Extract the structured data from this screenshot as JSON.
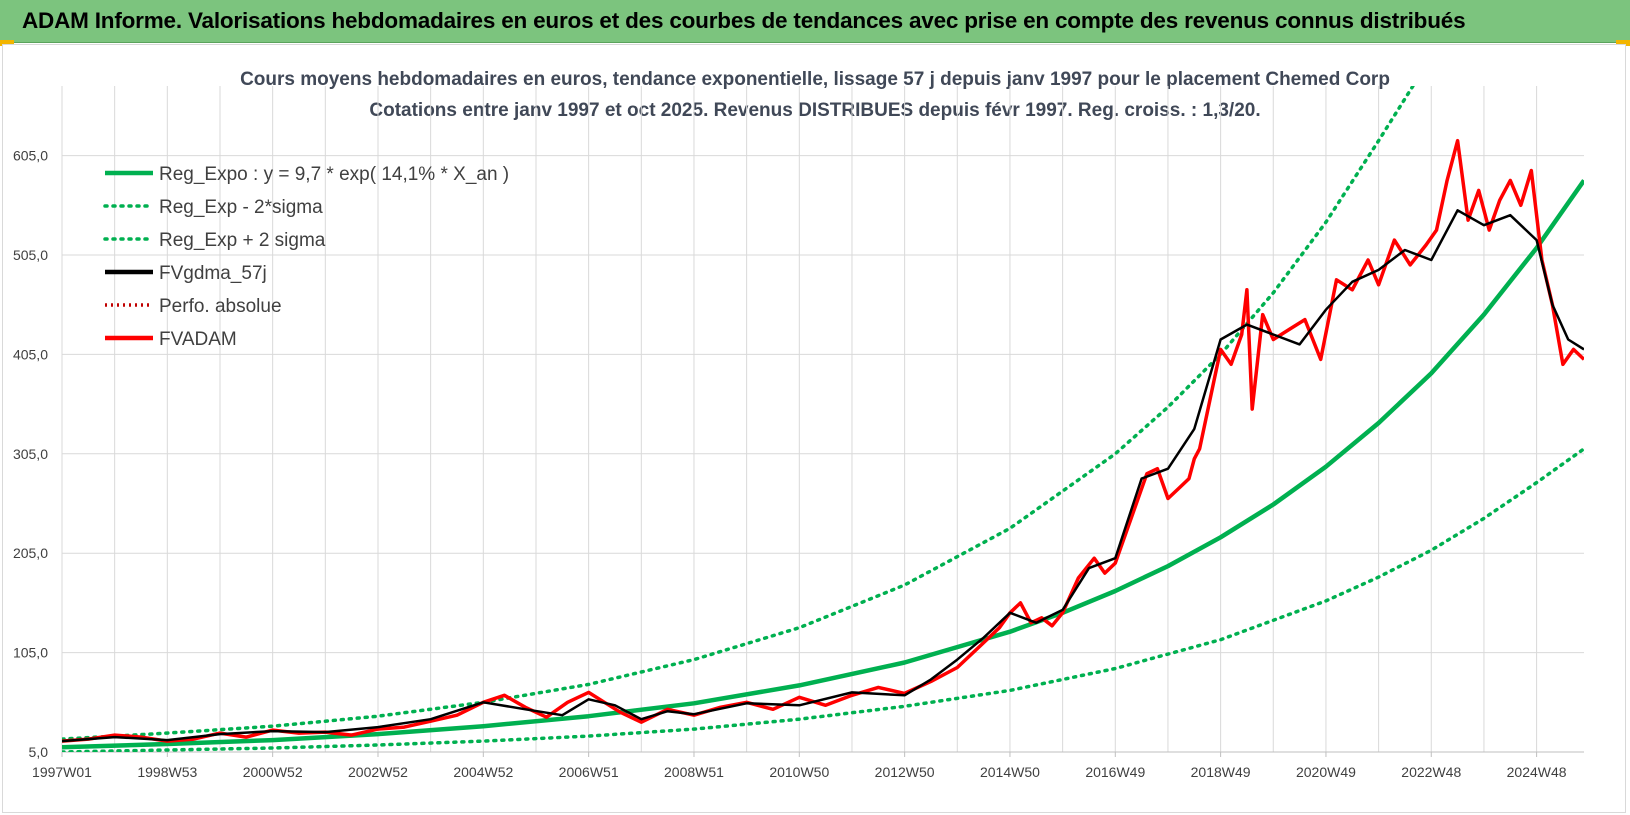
{
  "header": {
    "title": "ADAM Informe. Valorisations hebdomadaires en euros et des courbes de tendances avec prise en compte des revenus connus distribués"
  },
  "colors": {
    "banner": "#7cc47e",
    "regression": "#00b050",
    "fvadam": "#ff0000",
    "smoothed": "#000000",
    "perfo": "#c00000",
    "grid": "#d9d9d9",
    "accent_corner": "#f2b500"
  },
  "chart_data": {
    "type": "line",
    "title": "Cours moyens hebdomadaires en euros, tendance exponentielle, lissage 57 j depuis janv 1997 pour le placement Chemed Corp",
    "subtitle": "Cotations entre janv 1997 et oct 2025. Revenus DISTRIBUES depuis févr 1997. Reg. croiss. : 1,3/20.",
    "xlabel": "",
    "ylabel": "",
    "ylim": [
      5,
      675
    ],
    "y_ticks": [
      "605,0",
      "505,0",
      "405,0",
      "305,0",
      "205,0",
      "105,0",
      "5,0"
    ],
    "y_tick_values": [
      605,
      505,
      405,
      305,
      205,
      105,
      5
    ],
    "x_ticks": [
      "1997W01",
      "1998W53",
      "2000W52",
      "2002W52",
      "2004W52",
      "2006W51",
      "2008W51",
      "2010W50",
      "2012W50",
      "2014W50",
      "2016W49",
      "2018W49",
      "2020W49",
      "2022W48",
      "2024W48"
    ],
    "x_tick_values": [
      1997.0,
      1999.0,
      2001.0,
      2003.0,
      2005.0,
      2007.0,
      2009.0,
      2011.0,
      2013.0,
      2015.0,
      2017.0,
      2019.0,
      2021.0,
      2023.0,
      2025.0
    ],
    "x_range": [
      1997.0,
      2025.9
    ],
    "grid": true,
    "legend_position": "top-left",
    "series": [
      {
        "name": "Reg_Expo : y = 9,7 * exp( 14,1% *  X_an )",
        "style": "solid-thick",
        "x": [
          1997.0,
          1999.0,
          2001.0,
          2003.0,
          2005.0,
          2007.0,
          2009.0,
          2011.0,
          2013.0,
          2015.0,
          2016.0,
          2017.0,
          2018.0,
          2019.0,
          2020.0,
          2021.0,
          2022.0,
          2023.0,
          2024.0,
          2025.0,
          2025.9
        ],
        "y": [
          9.7,
          13,
          17,
          23,
          31,
          41,
          54,
          72,
          95,
          126,
          145,
          167,
          192,
          221,
          254,
          292,
          336,
          386,
          445,
          512,
          580
        ]
      },
      {
        "name": "Reg_Exp - 2*sigma",
        "style": "dotted",
        "x": [
          1997.0,
          1999.0,
          2001.0,
          2003.0,
          2005.0,
          2007.0,
          2009.0,
          2011.0,
          2013.0,
          2015.0,
          2017.0,
          2019.0,
          2021.0,
          2022.0,
          2023.0,
          2024.0,
          2025.0,
          2025.9
        ],
        "y": [
          5,
          7,
          9,
          12,
          16,
          21,
          28,
          38,
          51,
          67,
          89,
          118,
          157,
          181,
          208,
          240,
          276,
          310
        ]
      },
      {
        "name": "Reg_Exp + 2 sigma",
        "style": "dotted",
        "x": [
          1997.0,
          1999.0,
          2001.0,
          2003.0,
          2005.0,
          2007.0,
          2009.0,
          2011.0,
          2013.0,
          2015.0,
          2017.0,
          2018.0,
          2019.0,
          2020.0,
          2021.0,
          2022.0,
          2022.95,
          2025.9
        ],
        "y": [
          18,
          24,
          31,
          41,
          55,
          73,
          98,
          130,
          173,
          230,
          305,
          352,
          405,
          467,
          538,
          620,
          700,
          700
        ]
      },
      {
        "name": "FVgdma_57j",
        "style": "solid",
        "x": [
          1997.0,
          1998.0,
          1999.0,
          2000.0,
          2001.0,
          2002.0,
          2003.0,
          2004.0,
          2005.0,
          2005.8,
          2006.5,
          2007.0,
          2007.5,
          2008.0,
          2008.5,
          2009.0,
          2010.0,
          2011.0,
          2012.0,
          2013.0,
          2013.5,
          2014.0,
          2014.5,
          2015.0,
          2015.5,
          2016.0,
          2016.5,
          2017.0,
          2017.5,
          2018.0,
          2018.5,
          2019.0,
          2019.5,
          2020.0,
          2020.5,
          2021.0,
          2021.5,
          2022.0,
          2022.5,
          2023.0,
          2023.5,
          2024.0,
          2024.5,
          2025.0,
          2025.3,
          2025.6,
          2025.9
        ],
        "y": [
          16,
          20,
          17,
          23,
          26,
          25,
          30,
          38,
          55,
          48,
          42,
          58,
          52,
          38,
          46,
          43,
          54,
          52,
          65,
          62,
          78,
          98,
          120,
          145,
          135,
          148,
          190,
          200,
          280,
          290,
          330,
          420,
          435,
          425,
          415,
          450,
          478,
          490,
          510,
          500,
          550,
          535,
          545,
          520,
          455,
          420,
          410
        ]
      },
      {
        "name": "Perfo. absolue",
        "style": "dotted",
        "x": [],
        "y": []
      },
      {
        "name": "FVADAM",
        "style": "solid-thick",
        "x": [
          1997.0,
          1997.5,
          1998.0,
          1998.5,
          1999.0,
          1999.5,
          2000.0,
          2000.5,
          2001.0,
          2001.5,
          2002.0,
          2002.5,
          2003.0,
          2003.5,
          2004.0,
          2004.5,
          2005.0,
          2005.4,
          2005.8,
          2006.2,
          2006.6,
          2007.0,
          2007.3,
          2007.6,
          2008.0,
          2008.5,
          2009.0,
          2009.5,
          2010.0,
          2010.5,
          2011.0,
          2011.5,
          2012.0,
          2012.5,
          2013.0,
          2013.5,
          2014.0,
          2014.4,
          2014.8,
          2015.0,
          2015.2,
          2015.4,
          2015.6,
          2015.8,
          2016.0,
          2016.3,
          2016.6,
          2016.8,
          2017.0,
          2017.3,
          2017.6,
          2017.8,
          2018.0,
          2018.2,
          2018.4,
          2018.5,
          2018.6,
          2018.8,
          2019.0,
          2019.2,
          2019.4,
          2019.5,
          2019.6,
          2019.8,
          2020.0,
          2020.3,
          2020.6,
          2020.9,
          2021.2,
          2021.5,
          2021.8,
          2022.0,
          2022.3,
          2022.6,
          2022.9,
          2023.1,
          2023.3,
          2023.5,
          2023.7,
          2023.9,
          2024.1,
          2024.3,
          2024.5,
          2024.7,
          2024.9,
          2025.1,
          2025.3,
          2025.5,
          2025.7,
          2025.9
        ],
        "y": [
          16,
          18,
          22,
          20,
          16,
          18,
          24,
          20,
          27,
          24,
          25,
          22,
          28,
          30,
          36,
          42,
          55,
          62,
          50,
          40,
          55,
          65,
          55,
          45,
          35,
          48,
          42,
          50,
          55,
          48,
          60,
          52,
          62,
          70,
          64,
          76,
          90,
          110,
          130,
          145,
          155,
          135,
          140,
          132,
          145,
          180,
          200,
          185,
          195,
          240,
          285,
          290,
          260,
          270,
          280,
          300,
          310,
          360,
          410,
          395,
          425,
          470,
          350,
          445,
          420,
          430,
          440,
          400,
          480,
          470,
          500,
          475,
          520,
          495,
          515,
          530,
          580,
          620,
          540,
          570,
          530,
          560,
          580,
          555,
          590,
          500,
          455,
          395,
          410,
          400
        ]
      }
    ]
  }
}
